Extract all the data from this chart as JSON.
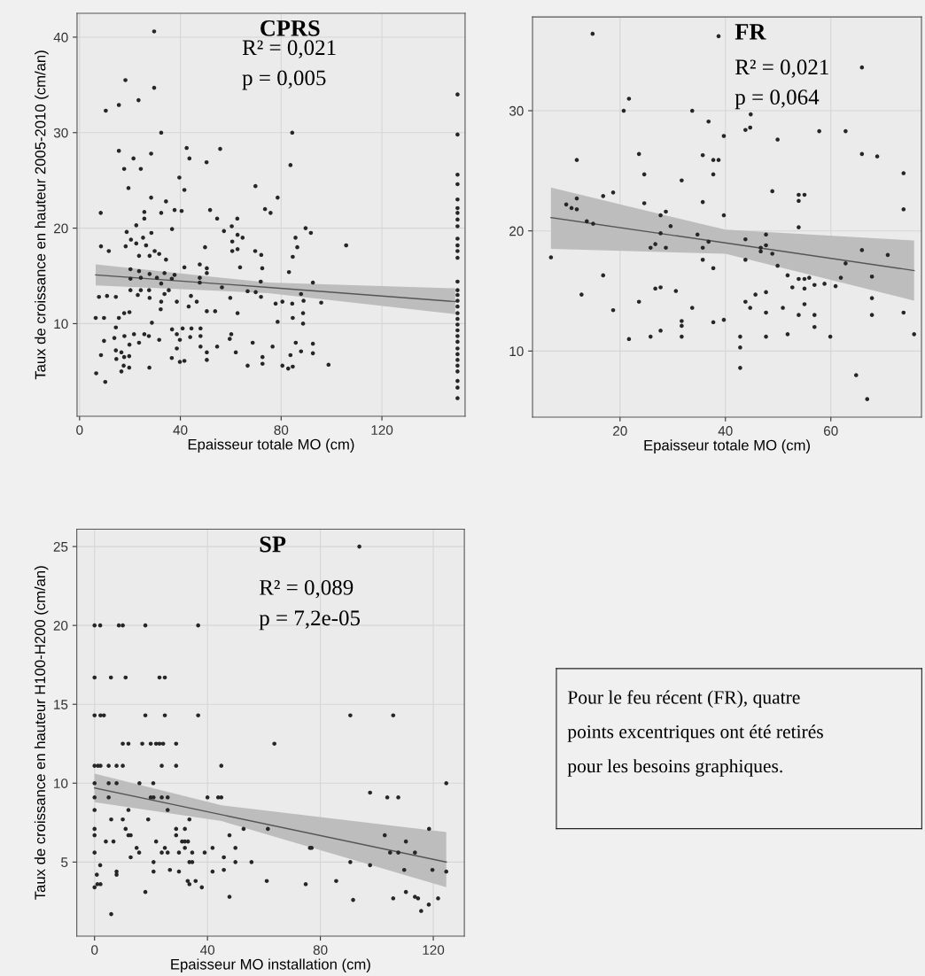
{
  "chart_data": [
    {
      "type": "scatter",
      "title": "CPRS",
      "annotations": [
        "R² = 0,021",
        "p = 0,005"
      ],
      "xlabel": "Epaisseur totale MO (cm)",
      "ylabel": "Taux de croissance en hauteur 2005-2010 (cm/an)",
      "xlim": [
        -1,
        153
      ],
      "ylim": [
        0.3,
        42.5
      ],
      "xticks": [
        0,
        40,
        80,
        120
      ],
      "yticks": [
        10,
        20,
        30,
        40
      ],
      "grid": true,
      "series": [
        {
          "type": "scatter",
          "marker": "circle",
          "color": "#262626",
          "x": [
            29.6,
            18.2,
            29.6,
            23.4,
            15.6,
            10.4,
            32.4,
            15.6,
            28.4,
            21.4,
            17.7,
            24.3,
            42.5,
            43.6,
            55.8,
            50.4,
            39.6,
            41.6,
            19.4,
            28.4,
            34.3,
            8.4,
            25.7,
            32.4,
            37.7,
            40.5,
            51.8,
            54.6,
            62.6,
            69.8,
            73.6,
            75.8,
            78.6,
            83.7,
            84.4,
            89.7,
            91.8,
            85.7,
            86.4,
            105.8,
            8.5,
            11.6,
            18.7,
            22.5,
            25.7,
            25.2,
            28.5,
            20.4,
            22.5,
            18.3,
            26.4,
            23.6,
            27.8,
            29.8,
            31.6,
            34.3,
            36.7,
            57.3,
            60.4,
            62.7,
            64.7,
            60.6,
            60.6,
            62.7,
            49.8,
            69.7,
            72.1,
            63.7,
            72.5,
            84.6,
            83.1,
            47.7,
            50.5,
            50.5,
            41.6,
            20.2,
            23.6,
            20.2,
            24.3,
            27.8,
            30.7,
            33.7,
            37.7,
            32.4,
            36.6,
            47.7,
            47.7,
            56.5,
            7.7,
            10.9,
            14.4,
            20.2,
            23.1,
            24.3,
            27.6,
            27.8,
            33.7,
            35.4,
            32.4,
            38.6,
            44.2,
            46.5,
            43.3,
            32.2,
            50.5,
            53.8,
            62.7,
            59.8,
            66.7,
            69.9,
            71.9,
            72.0,
            77.8,
            80.5,
            84.4,
            87.9,
            88.9,
            92.6,
            95.9,
            88.7,
            84.6,
            88.7,
            78.6,
            6.4,
            9.7,
            15.6,
            17.7,
            19.8,
            28.7,
            14.4,
            9.7,
            13.8,
            17.8,
            21.6,
            25.7,
            27.5,
            23.6,
            19.8,
            31.6,
            36.7,
            38.6,
            40.9,
            44.4,
            48.0,
            39.8,
            43.9,
            48.0,
            60.2,
            59.6,
            48.0,
            54.6,
            68.7,
            76.6,
            85.8,
            92.6,
            8.5,
            14.4,
            14.6,
            16.6,
            17.7,
            19.7,
            17.5,
            16.6,
            19.7,
            27.7,
            38.6,
            36.6,
            39.8,
            41.6,
            50.5,
            50.5,
            62.0,
            66.7,
            72.6,
            72.6,
            80.5,
            82.8,
            84.6,
            83.7,
            87.9,
            92.6,
            98.8,
            6.6,
            10.2,
            150,
            150,
            150,
            150,
            150,
            150,
            150,
            150,
            150,
            150,
            150,
            150,
            150,
            150,
            150,
            150,
            150,
            150,
            150,
            150,
            150,
            150,
            150,
            150,
            150,
            150,
            150,
            150,
            150,
            150,
            150,
            150
          ],
          "values": [
            40.6,
            35.5,
            34.7,
            33.4,
            32.9,
            32.3,
            30.0,
            28.1,
            27.8,
            27.3,
            26.2,
            26.2,
            28.4,
            27.3,
            28.3,
            26.9,
            25.3,
            24.0,
            24.2,
            23.2,
            22.8,
            21.6,
            21.7,
            21.6,
            21.9,
            21.8,
            21.9,
            21.0,
            21.0,
            24.4,
            22.0,
            21.6,
            23.2,
            26.6,
            30.0,
            20.0,
            19.5,
            19.0,
            18.0,
            18.2,
            18.1,
            17.6,
            19.6,
            20.3,
            21.0,
            19.0,
            19.5,
            18.8,
            18.4,
            18.1,
            18.2,
            17.1,
            17.1,
            17.6,
            17.3,
            16.7,
            19.9,
            19.7,
            20.2,
            19.3,
            19.0,
            18.6,
            17.6,
            17.8,
            18.0,
            17.6,
            17.2,
            15.9,
            15.8,
            17.0,
            15.4,
            16.2,
            15.8,
            15.3,
            15.9,
            15.7,
            15.5,
            14.7,
            14.8,
            15.2,
            14.8,
            15.3,
            15.1,
            14.2,
            14.7,
            14.8,
            14.3,
            13.8,
            12.8,
            12.9,
            12.8,
            13.5,
            13.0,
            13.5,
            13.5,
            12.7,
            13.1,
            13.5,
            12.3,
            12.3,
            12.9,
            12.3,
            11.8,
            11.5,
            11.3,
            11.3,
            11.1,
            12.7,
            13.4,
            13.3,
            14.4,
            12.8,
            12.1,
            12.3,
            12.1,
            13.1,
            12.4,
            14.3,
            12.2,
            11.1,
            10.6,
            10.0,
            10.2,
            10.6,
            10.6,
            10.6,
            11.1,
            11.2,
            10.1,
            9.6,
            8.2,
            8.5,
            8.7,
            8.9,
            8.9,
            8.7,
            8.0,
            7.8,
            8.3,
            9.4,
            8.9,
            9.5,
            9.5,
            9.5,
            8.3,
            8.6,
            8.7,
            8.9,
            8.4,
            7.6,
            7.6,
            8.0,
            7.6,
            8.0,
            7.9,
            6.7,
            7.2,
            6.3,
            7.0,
            6.5,
            6.6,
            5.6,
            5.0,
            5.4,
            5.4,
            7.4,
            6.4,
            6.0,
            6.1,
            7.0,
            6.2,
            7.0,
            5.6,
            6.5,
            5.8,
            5.6,
            5.3,
            5.5,
            6.7,
            7.1,
            6.9,
            5.7,
            4.8,
            3.9,
            34.0,
            29.8,
            25.6,
            24.6,
            23.0,
            22.1,
            21.6,
            20.9,
            20.2,
            18.9,
            18.2,
            17.6,
            16.9,
            14.4,
            13.5,
            13.0,
            12.4,
            11.8,
            11.1,
            10.5,
            9.9,
            9.3,
            8.7,
            8.1,
            7.4,
            6.8,
            6.2,
            5.6,
            5.0,
            4.0,
            3.3,
            2.2
          ]
        },
        {
          "type": "line",
          "marker": "none",
          "line_style": "solid",
          "color": "#555555",
          "x": [
            6.4,
            74.9,
            149.1
          ],
          "values": [
            15.1,
            13.8,
            12.3
          ],
          "lower": [
            14.0,
            13.2,
            11.0
          ],
          "upper": [
            16.2,
            14.3,
            13.7
          ]
        }
      ]
    },
    {
      "type": "scatter",
      "title": "FR",
      "annotations": [
        "R² = 0,021",
        "p = 0,064"
      ],
      "xlabel": "Epaisseur totale MO (cm)",
      "xlim": [
        3.4,
        77.2
      ],
      "ylim": [
        4.5,
        37.8
      ],
      "xticks": [
        20,
        40,
        60
      ],
      "yticks": [
        10,
        20,
        30
      ],
      "grid": true,
      "series": [
        {
          "type": "scatter",
          "marker": "circle",
          "color": "#262626",
          "x": [
            14.8,
            38.7,
            65.9,
            21.7,
            20.7,
            33.7,
            36.8,
            44.8,
            43.8,
            44.7,
            57.8,
            62.8,
            39.7,
            49.9,
            23.6,
            35.7,
            37.7,
            38.7,
            65.9,
            68.8,
            11.8,
            24.6,
            37.7,
            73.8,
            31.7,
            18.7,
            16.8,
            11.8,
            48.9,
            53.9,
            55.0,
            53.9,
            35.7,
            24.6,
            9.8,
            10.8,
            11.8,
            28.7,
            27.7,
            39.7,
            73.8,
            13.7,
            14.9,
            53.9,
            29.6,
            27.7,
            34.7,
            47.7,
            43.8,
            36.8,
            26.7,
            25.8,
            28.7,
            35.7,
            46.7,
            47.7,
            46.7,
            48.9,
            65.9,
            70.8,
            6.9,
            35.7,
            43.8,
            62.8,
            49.9,
            37.7,
            61.9,
            51.8,
            53.9,
            55.0,
            55.9,
            67.8,
            16.8,
            56.9,
            58.8,
            60.9,
            52.7,
            55.0,
            26.7,
            27.7,
            30.6,
            47.7,
            45.7,
            12.7,
            23.6,
            43.8,
            67.8,
            55.0,
            44.7,
            33.7,
            50.9,
            18.7,
            47.7,
            73.8,
            53.9,
            56.9,
            67.8,
            39.7,
            37.7,
            31.7,
            31.7,
            56.9,
            27.7,
            75.8,
            51.8,
            25.8,
            31.7,
            42.8,
            47.7,
            59.9,
            21.7,
            42.8,
            42.8,
            64.8,
            66.9
          ],
          "values": [
            36.4,
            36.2,
            33.6,
            31.0,
            30.0,
            30.0,
            29.1,
            29.7,
            28.4,
            28.6,
            28.3,
            28.3,
            27.9,
            27.6,
            26.4,
            26.3,
            25.9,
            25.9,
            26.4,
            26.2,
            25.9,
            24.7,
            24.7,
            24.8,
            24.2,
            23.2,
            22.9,
            22.7,
            23.3,
            23.0,
            23.0,
            22.5,
            22.4,
            22.3,
            22.2,
            21.9,
            21.8,
            21.6,
            21.3,
            21.3,
            21.8,
            20.8,
            20.6,
            20.3,
            20.4,
            19.8,
            19.7,
            19.7,
            19.3,
            19.1,
            18.9,
            18.6,
            18.6,
            18.6,
            18.6,
            18.8,
            18.3,
            18.1,
            18.4,
            18.0,
            17.8,
            17.6,
            17.6,
            17.3,
            17.1,
            16.9,
            16.1,
            16.3,
            16.0,
            16.0,
            16.1,
            16.2,
            16.3,
            15.5,
            15.6,
            15.4,
            15.3,
            15.2,
            15.2,
            15.3,
            15.0,
            14.9,
            14.7,
            14.7,
            14.1,
            14.1,
            14.4,
            13.9,
            13.6,
            13.6,
            13.6,
            13.4,
            13.2,
            13.2,
            13.0,
            13.0,
            13.0,
            12.6,
            12.4,
            12.5,
            12.1,
            12.0,
            11.7,
            11.4,
            11.4,
            11.2,
            11.2,
            11.2,
            11.2,
            11.2,
            11.0,
            10.3,
            8.6,
            8.0,
            6.0
          ]
        },
        {
          "type": "line",
          "marker": "none",
          "line_style": "solid",
          "color": "#555555",
          "x": [
            6.9,
            40,
            75.8
          ],
          "values": [
            21.1,
            19.0,
            16.7
          ],
          "lower": [
            18.5,
            18.1,
            14.2
          ],
          "upper": [
            23.6,
            20.1,
            19.2
          ]
        }
      ]
    },
    {
      "type": "scatter",
      "title": "SP",
      "annotations": [
        "R² = 0,089",
        "p = 7,2e-05"
      ],
      "xlabel": "Epaisseur MO installation (cm)",
      "ylabel": "Taux de croissance en hauteur H100-H200 (cm/an)",
      "xlim": [
        -6.3,
        131
      ],
      "ylim": [
        0.3,
        26.1
      ],
      "xticks": [
        0,
        40,
        80,
        120
      ],
      "yticks": [
        5,
        10,
        15,
        20,
        25
      ],
      "grid": true,
      "series": [
        {
          "type": "scatter",
          "marker": "circle",
          "color": "#262626",
          "x": [
            93.8,
            0,
            2.0,
            8.6,
            10.0,
            18.0,
            36.7,
            0,
            5.8,
            11.0,
            23.0,
            24.9,
            0,
            2.1,
            3.3,
            18.0,
            24.9,
            36.7,
            90.6,
            105.8,
            10.0,
            12.0,
            16.9,
            19.9,
            21.8,
            23.0,
            24.3,
            28.9,
            63.7,
            0,
            1.2,
            2.1,
            5.0,
            7.8,
            10.0,
            23.8,
            28.9,
            44.9,
            0,
            5.0,
            7.8,
            15.9,
            20.8,
            124.6,
            0,
            5.0,
            19.9,
            20.9,
            23.8,
            25.9,
            40.0,
            43.8,
            44.9,
            103.7,
            107.6,
            97.6,
            0,
            12.0,
            25.9,
            5.9,
            10.0,
            19.0,
            33.6,
            0,
            11.0,
            28.9,
            32.0,
            52.8,
            61.4,
            118.5,
            0,
            12.0,
            12.8,
            28.9,
            47.8,
            102.8,
            4.0,
            6.7,
            21.8,
            31.0,
            32.0,
            33.1,
            110.3,
            14.9,
            24.9,
            32.0,
            41.8,
            49.9,
            76.3,
            76.9,
            0,
            15.8,
            23.8,
            25.9,
            29.9,
            34.6,
            39.0,
            104.7,
            107.6,
            113.5,
            12.8,
            45.8,
            20.9,
            33.6,
            34.6,
            49.9,
            55.6,
            90.6,
            2.0,
            97.6,
            26.7,
            45.8,
            109.7,
            119.7,
            7.8,
            20.9,
            29.9,
            41.8,
            124.6,
            0.8,
            7.8,
            33.0,
            35.8,
            61.0,
            85.6,
            1.0,
            2.1,
            33.6,
            74.8,
            0,
            38.0,
            18.0,
            110.3,
            113.5,
            47.8,
            105.8,
            114.6,
            121.7,
            91.6,
            118.4,
            115.7,
            5.9
          ],
          "values": [
            25,
            20,
            20,
            20,
            20,
            20,
            20,
            16.7,
            16.7,
            16.7,
            16.7,
            16.7,
            14.3,
            14.3,
            14.3,
            14.3,
            14.3,
            14.3,
            14.3,
            14.3,
            12.5,
            12.5,
            12.5,
            12.5,
            12.5,
            12.5,
            12.5,
            12.5,
            12.5,
            11.1,
            11.1,
            11.1,
            11.1,
            11.1,
            11.1,
            11.1,
            11.1,
            11.1,
            10,
            10,
            10,
            10,
            10,
            10,
            9.1,
            9.1,
            9.1,
            9.1,
            9.1,
            9.1,
            9.1,
            9.1,
            9.1,
            9.1,
            9.1,
            9.4,
            8.3,
            8.3,
            8.3,
            7.7,
            7.7,
            7.7,
            7.7,
            7.1,
            7.1,
            7.1,
            7.1,
            7.1,
            7.1,
            7.1,
            6.7,
            6.7,
            6.7,
            6.7,
            6.7,
            6.7,
            6.3,
            6.3,
            6.3,
            6.3,
            6.3,
            6.3,
            6.3,
            5.9,
            5.9,
            5.9,
            5.9,
            5.9,
            5.9,
            5.9,
            5.6,
            5.6,
            5.6,
            5.6,
            5.6,
            5.6,
            5.6,
            5.6,
            5.6,
            5.6,
            5.3,
            5.3,
            5,
            5,
            5,
            5,
            5,
            5,
            4.8,
            4.8,
            4.5,
            4.5,
            4.5,
            4.5,
            4.4,
            4.4,
            4.4,
            4.4,
            4.4,
            4.2,
            4.2,
            3.8,
            3.8,
            3.8,
            3.8,
            3.6,
            3.6,
            3.6,
            3.6,
            3.4,
            3.4,
            3.1,
            3.1,
            2.8,
            2.8,
            2.7,
            2.7,
            2.7,
            2.6,
            2.3,
            1.9,
            1.7
          ]
        },
        {
          "type": "line",
          "marker": "none",
          "line_style": "solid",
          "color": "#555555",
          "x": [
            0,
            45,
            124.6
          ],
          "values": [
            9.7,
            8.0,
            5.0
          ],
          "lower": [
            8.8,
            7.6,
            3.4
          ],
          "upper": [
            10.6,
            8.6,
            6.9
          ]
        }
      ]
    },
    {
      "type": "other",
      "annotations": [
        "Pour le feu récent (FR), quatre",
        "points excentriques ont été retirés",
        "pour les besoins graphiques."
      ]
    }
  ]
}
